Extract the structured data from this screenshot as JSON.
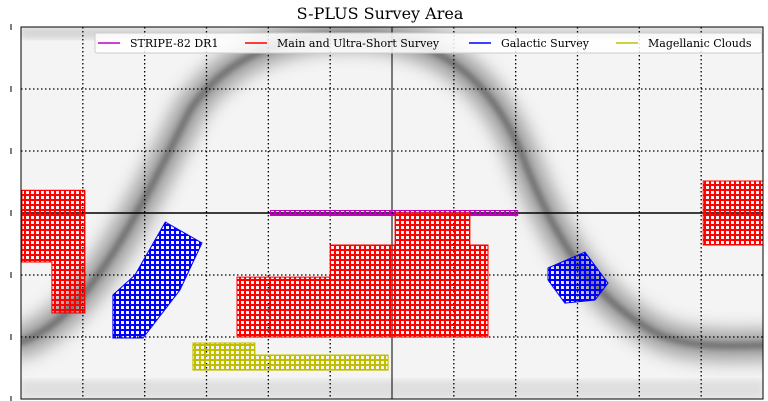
{
  "chart_data": {
    "type": "map",
    "title": "S-PLUS Survey Area",
    "xlim": [
      -180,
      180
    ],
    "ylim": [
      -90,
      90
    ],
    "grid": true,
    "grid_step_deg": 30,
    "legend": {
      "placement": "top",
      "entries": [
        {
          "label": "STRIPE-82 DR1",
          "color": "#bf00bf"
        },
        {
          "label": "Main and Ultra-Short Survey",
          "color": "#ff0000"
        },
        {
          "label": "Galactic Survey",
          "color": "#0000ff"
        },
        {
          "label": "Magellanic Clouds",
          "color": "#bfbf00"
        }
      ]
    },
    "footprints": [
      {
        "survey": "STRIPE-82 DR1",
        "color": "#bf00bf",
        "polygon": [
          [
            -59,
            1.2
          ],
          [
            61,
            1.2
          ],
          [
            61,
            -1.2
          ],
          [
            -59,
            -1.2
          ]
        ]
      },
      {
        "survey": "Main and Ultra-Short Survey",
        "color": "#ff0000",
        "polygon": [
          [
            -179.5,
            11
          ],
          [
            -149,
            11
          ],
          [
            -149,
            -48.4
          ],
          [
            -165,
            -48.4
          ],
          [
            -165,
            -23.7
          ],
          [
            -179.5,
            -23.7
          ]
        ]
      },
      {
        "survey": "Main and Ultra-Short Survey",
        "color": "#ff0000",
        "polygon": [
          [
            151,
            15.5
          ],
          [
            180,
            15.5
          ],
          [
            180,
            -15.5
          ],
          [
            151,
            -15.5
          ]
        ]
      },
      {
        "survey": "Main and Ultra-Short Survey",
        "color": "#ff0000",
        "polygon": [
          [
            1.5,
            0
          ],
          [
            37.8,
            0
          ],
          [
            37.8,
            -15.5
          ],
          [
            46.6,
            -15.5
          ],
          [
            46.6,
            -60
          ],
          [
            -75.2,
            -60
          ],
          [
            -75.2,
            -31
          ],
          [
            -30,
            -31
          ],
          [
            -30,
            -15.5
          ],
          [
            1.5,
            -15.5
          ]
        ]
      },
      {
        "survey": "Galactic Survey",
        "color": "#0000ff",
        "polygon": [
          [
            -110,
            -4.4
          ],
          [
            -92.2,
            -14.5
          ],
          [
            -102.9,
            -37.3
          ],
          [
            -120.8,
            -60.5
          ],
          [
            -135.4,
            -60.5
          ],
          [
            -135.4,
            -39.7
          ],
          [
            -124.7,
            -30
          ]
        ]
      },
      {
        "survey": "Galactic Survey",
        "color": "#0000ff",
        "polygon": [
          [
            75.7,
            -26.6
          ],
          [
            93.6,
            -18.9
          ],
          [
            104.8,
            -33.9
          ],
          [
            98.5,
            -42.1
          ],
          [
            83.9,
            -43.6
          ],
          [
            75.7,
            -32.4
          ]
        ]
      },
      {
        "survey": "Magellanic Clouds",
        "color": "#bfbf00",
        "polygon": [
          [
            -96.6,
            -62.9
          ],
          [
            -66.5,
            -62.9
          ],
          [
            -66.5,
            -68.7
          ],
          [
            -1.9,
            -68.7
          ],
          [
            -1.9,
            -76
          ],
          [
            -96.6,
            -76
          ]
        ]
      }
    ],
    "background": "grayscale dust map"
  }
}
